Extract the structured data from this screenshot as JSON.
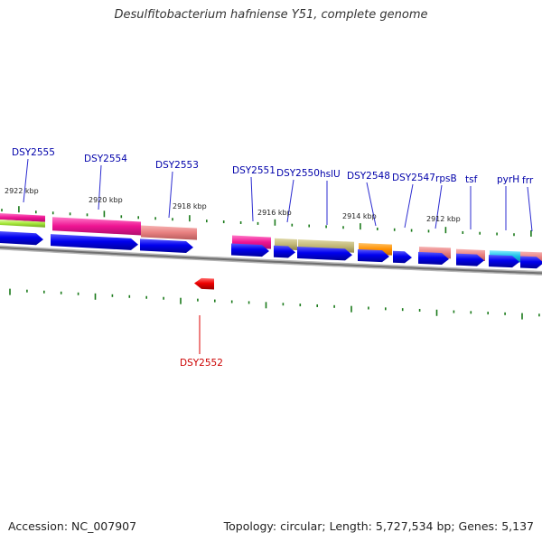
{
  "header": {
    "title": "Desulfitobacterium hafniense Y51, complete genome"
  },
  "footer": {
    "accession": "Accession: NC_007907",
    "topology": "Topology: circular; Length: 5,727,534 bp; Genes: 5,137"
  },
  "colors": {
    "forward_gene": "#0000ee",
    "reverse_gene": "#ee0000",
    "label_forward": "#0000aa",
    "label_reverse": "#cc0000",
    "backbone": "#8a8a8a",
    "tick": "#1a7a1a"
  },
  "position_labels": [
    "2922 kbp",
    "2920 kbp",
    "2918 kbp",
    "2916 kbp",
    "2914 kbp",
    "2912 kbp"
  ],
  "genes_forward": [
    "DSY2555",
    "DSY2554",
    "DSY2553",
    "DSY2551",
    "DSY2550",
    "hslU",
    "DSY2548",
    "DSY2547",
    "rpsB",
    "tsf",
    "pyrH",
    "frr"
  ],
  "genes_reverse": [
    "DSY2552"
  ]
}
